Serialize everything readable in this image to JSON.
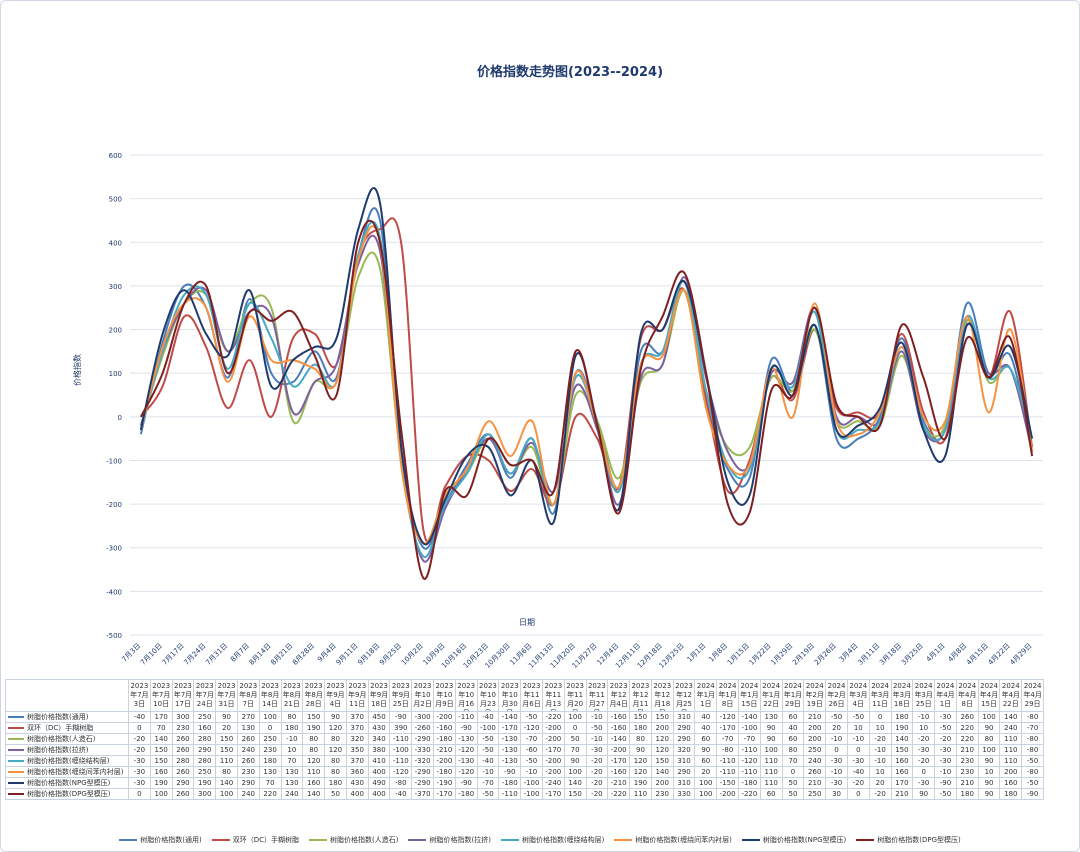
{
  "chart_data": {
    "type": "line",
    "title": "价格指数走势图(2023--2024)",
    "x_label": "日期",
    "y_label": "价格指数",
    "categories": [
      "2023年7月3日",
      "2023年7月10日",
      "2023年7月17日",
      "2023年7月24日",
      "2023年7月31日",
      "2023年8月7日",
      "2023年8月14日",
      "2023年8月21日",
      "2023年8月28日",
      "2023年9月4日",
      "2023年9月11日",
      "2023年9月18日",
      "2023年9月25日",
      "2023年10月2日",
      "2023年10月9日",
      "2023年10月16日",
      "2023年10月23日",
      "2023年10月30日",
      "2023年11月6日",
      "2023年11月13日",
      "2023年11月20日",
      "2023年11月27日",
      "2023年12月4日",
      "2023年12月11日",
      "2023年12月18日",
      "2023年12月25日",
      "2024年1月1日",
      "2024年1月8日",
      "2024年1月15日",
      "2024年1月22日",
      "2024年1月29日",
      "2024年2月19日",
      "2024年2月26日",
      "2024年3月4日",
      "2024年3月11日",
      "2024年3月18日",
      "2024年3月25日",
      "2024年4月1日",
      "2024年4月8日",
      "2024年4月15日",
      "2024年4月22日",
      "2024年4月29日"
    ],
    "x_axis_labels": [
      "7月3日",
      "7月10日",
      "7月17日",
      "7月24日",
      "7月31日",
      "8月7日",
      "8月14日",
      "8月21日",
      "8月28日",
      "9月4日",
      "9月11日",
      "9月18日",
      "9月25日",
      "10月2日",
      "10月9日",
      "10月16日",
      "10月23日",
      "10月30日",
      "11月6日",
      "11月13日",
      "11月20日",
      "11月27日",
      "12月4日",
      "12月11日",
      "12月18日",
      "12月25日",
      "1月1日",
      "1月8日",
      "1月15日",
      "1月22日",
      "1月29日",
      "2月19日",
      "2月26日",
      "3月4日",
      "3月11日",
      "3月18日",
      "3月25日",
      "4月1日",
      "4月8日",
      "4月15日",
      "4月22日",
      "4月29日"
    ],
    "ylim": [
      -500,
      600
    ],
    "yticks": [
      -500,
      -400,
      -300,
      -200,
      -100,
      0,
      100,
      200,
      300,
      400,
      500,
      600
    ],
    "grid": true,
    "smooth": true,
    "series": [
      {
        "name": "树脂价格指数(通用)",
        "color": "#4a7ebb",
        "values": [
          -40,
          170,
          300,
          250,
          90,
          270,
          100,
          80,
          150,
          90,
          370,
          450,
          -90,
          -300,
          -200,
          -110,
          -40,
          -140,
          -50,
          -220,
          100,
          -10,
          -160,
          150,
          150,
          310,
          40,
          -120,
          -140,
          130,
          60,
          210,
          -50,
          -50,
          0,
          180,
          -10,
          -30,
          260,
          100,
          140,
          -80
        ]
      },
      {
        "name": "双环（DC）手糊树脂",
        "color": "#be4b48",
        "values": [
          0,
          70,
          230,
          160,
          20,
          130,
          0,
          180,
          190,
          120,
          370,
          430,
          390,
          -260,
          -160,
          -90,
          -100,
          -170,
          -120,
          -200,
          0,
          -50,
          -160,
          180,
          200,
          290,
          40,
          -170,
          -100,
          90,
          40,
          200,
          20,
          10,
          10,
          190,
          10,
          -50,
          220,
          90,
          240,
          -70
        ]
      },
      {
        "name": "树脂价格指数(人造石)",
        "color": "#98b954",
        "values": [
          -20,
          140,
          260,
          280,
          150,
          260,
          250,
          -10,
          80,
          80,
          320,
          340,
          -110,
          -290,
          -180,
          -130,
          -50,
          -130,
          -70,
          -200,
          50,
          -10,
          -140,
          80,
          120,
          290,
          60,
          -70,
          -70,
          90,
          60,
          200,
          -10,
          -10,
          -20,
          140,
          -20,
          -20,
          220,
          80,
          110,
          -80
        ]
      },
      {
        "name": "树脂价格指数(拉挤)",
        "color": "#7d60a0",
        "values": [
          -20,
          150,
          260,
          290,
          150,
          240,
          230,
          10,
          80,
          120,
          350,
          380,
          -100,
          -330,
          -210,
          -120,
          -50,
          -130,
          -60,
          -170,
          70,
          -30,
          -200,
          90,
          120,
          320,
          90,
          -80,
          -110,
          100,
          80,
          250,
          0,
          0,
          -10,
          150,
          -30,
          -30,
          210,
          100,
          110,
          -80
        ]
      },
      {
        "name": "树脂价格指数(缠绕结构层)",
        "color": "#46aac5",
        "values": [
          -30,
          150,
          280,
          280,
          110,
          260,
          180,
          70,
          120,
          80,
          370,
          410,
          -110,
          -320,
          -200,
          -130,
          -40,
          -130,
          -50,
          -200,
          90,
          -20,
          -170,
          120,
          150,
          310,
          60,
          -110,
          -120,
          110,
          70,
          240,
          -30,
          -30,
          -10,
          160,
          -20,
          -30,
          230,
          90,
          110,
          -50
        ]
      },
      {
        "name": "树脂价格指数(缠绕间苯内衬层)",
        "color": "#f69240",
        "values": [
          -30,
          160,
          260,
          250,
          80,
          230,
          130,
          130,
          110,
          80,
          360,
          400,
          -120,
          -290,
          -180,
          -120,
          -10,
          -90,
          -10,
          -200,
          100,
          -20,
          -160,
          120,
          140,
          290,
          20,
          -110,
          -110,
          110,
          0,
          260,
          -10,
          -40,
          10,
          160,
          0,
          -10,
          230,
          10,
          200,
          -80
        ]
      },
      {
        "name": "树脂价格指数(NPG型模压)",
        "color": "#1f3a6e",
        "values": [
          -30,
          190,
          290,
          190,
          140,
          290,
          70,
          130,
          160,
          180,
          430,
          490,
          -80,
          -290,
          -190,
          -90,
          -70,
          -180,
          -100,
          -240,
          140,
          -20,
          -210,
          190,
          200,
          310,
          100,
          -150,
          -180,
          110,
          50,
          210,
          -30,
          -20,
          20,
          170,
          -30,
          -90,
          210,
          90,
          160,
          -50
        ]
      },
      {
        "name": "树脂价格指数(DPG型模压)",
        "color": "#7f2020",
        "values": [
          0,
          100,
          260,
          300,
          100,
          240,
          220,
          240,
          140,
          50,
          400,
          400,
          -40,
          -370,
          -170,
          -180,
          -50,
          -110,
          -100,
          -170,
          150,
          -20,
          -220,
          110,
          230,
          330,
          100,
          -200,
          -220,
          60,
          50,
          250,
          30,
          0,
          -20,
          210,
          90,
          -50,
          180,
          90,
          180,
          -90
        ]
      }
    ]
  }
}
